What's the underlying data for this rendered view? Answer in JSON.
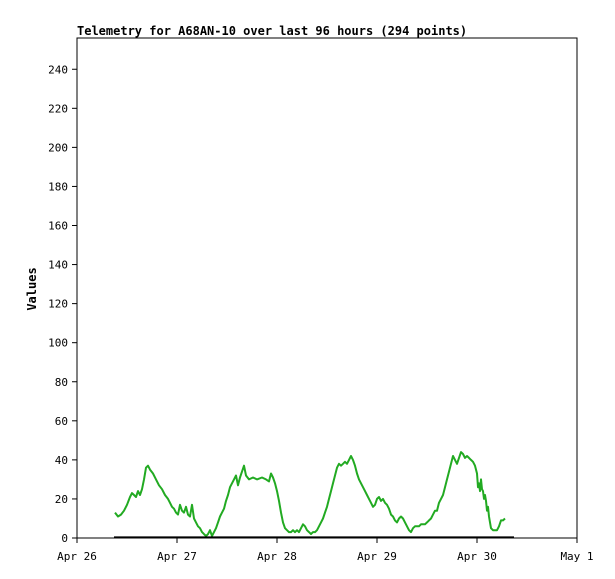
{
  "chart_data": {
    "type": "line",
    "title": "Telemetry for A68AN-10 over last 96 hours (294 points)",
    "xlabel": "",
    "ylabel": "Values",
    "x_tick_labels": [
      "Apr 26",
      "Apr 27",
      "Apr 28",
      "Apr 29",
      "Apr 30",
      "May 1"
    ],
    "x_range_days": [
      0,
      5
    ],
    "y_ticks": [
      0,
      20,
      40,
      60,
      80,
      100,
      120,
      140,
      160,
      180,
      200,
      220,
      240
    ],
    "ylim": [
      0,
      256
    ],
    "grid": false,
    "legend": "none",
    "series": [
      {
        "color": "#22aa22",
        "points": [
          [
            0.38,
            13
          ],
          [
            0.41,
            11
          ],
          [
            0.44,
            12
          ],
          [
            0.47,
            14
          ],
          [
            0.5,
            17
          ],
          [
            0.53,
            21
          ],
          [
            0.55,
            23
          ],
          [
            0.57,
            22
          ],
          [
            0.59,
            21
          ],
          [
            0.61,
            24
          ],
          [
            0.63,
            22
          ],
          [
            0.65,
            25
          ],
          [
            0.67,
            30
          ],
          [
            0.69,
            36
          ],
          [
            0.71,
            37
          ],
          [
            0.73,
            35
          ],
          [
            0.76,
            33
          ],
          [
            0.79,
            30
          ],
          [
            0.82,
            27
          ],
          [
            0.85,
            25
          ],
          [
            0.88,
            22
          ],
          [
            0.91,
            20
          ],
          [
            0.93,
            18
          ],
          [
            0.95,
            16
          ],
          [
            0.97,
            15
          ],
          [
            0.99,
            13
          ],
          [
            1.01,
            12
          ],
          [
            1.03,
            17
          ],
          [
            1.05,
            14
          ],
          [
            1.07,
            13
          ],
          [
            1.09,
            16
          ],
          [
            1.11,
            12
          ],
          [
            1.13,
            11
          ],
          [
            1.15,
            17
          ],
          [
            1.17,
            10
          ],
          [
            1.19,
            8
          ],
          [
            1.21,
            6
          ],
          [
            1.23,
            5
          ],
          [
            1.25,
            3
          ],
          [
            1.27,
            2
          ],
          [
            1.29,
            1
          ],
          [
            1.31,
            2
          ],
          [
            1.33,
            4
          ],
          [
            1.35,
            1
          ],
          [
            1.37,
            3
          ],
          [
            1.39,
            5
          ],
          [
            1.41,
            8
          ],
          [
            1.43,
            11
          ],
          [
            1.45,
            13
          ],
          [
            1.47,
            15
          ],
          [
            1.49,
            19
          ],
          [
            1.51,
            22
          ],
          [
            1.53,
            26
          ],
          [
            1.55,
            28
          ],
          [
            1.57,
            30
          ],
          [
            1.59,
            32
          ],
          [
            1.61,
            27
          ],
          [
            1.63,
            31
          ],
          [
            1.65,
            34
          ],
          [
            1.67,
            37
          ],
          [
            1.69,
            32
          ],
          [
            1.72,
            30
          ],
          [
            1.76,
            31
          ],
          [
            1.8,
            30
          ],
          [
            1.85,
            31
          ],
          [
            1.89,
            30
          ],
          [
            1.92,
            29
          ],
          [
            1.94,
            33
          ],
          [
            1.96,
            31
          ],
          [
            1.98,
            28
          ],
          [
            2.0,
            24
          ],
          [
            2.02,
            19
          ],
          [
            2.04,
            13
          ],
          [
            2.06,
            8
          ],
          [
            2.08,
            5
          ],
          [
            2.1,
            4
          ],
          [
            2.12,
            3
          ],
          [
            2.14,
            3
          ],
          [
            2.16,
            4
          ],
          [
            2.18,
            3
          ],
          [
            2.2,
            4
          ],
          [
            2.22,
            3
          ],
          [
            2.24,
            5
          ],
          [
            2.26,
            7
          ],
          [
            2.28,
            6
          ],
          [
            2.3,
            4
          ],
          [
            2.32,
            3
          ],
          [
            2.34,
            2
          ],
          [
            2.36,
            3
          ],
          [
            2.38,
            3
          ],
          [
            2.4,
            4
          ],
          [
            2.42,
            6
          ],
          [
            2.44,
            8
          ],
          [
            2.46,
            10
          ],
          [
            2.48,
            13
          ],
          [
            2.5,
            16
          ],
          [
            2.52,
            20
          ],
          [
            2.54,
            24
          ],
          [
            2.56,
            28
          ],
          [
            2.58,
            32
          ],
          [
            2.6,
            36
          ],
          [
            2.62,
            38
          ],
          [
            2.64,
            37
          ],
          [
            2.66,
            38
          ],
          [
            2.68,
            39
          ],
          [
            2.7,
            38
          ],
          [
            2.72,
            40
          ],
          [
            2.74,
            42
          ],
          [
            2.76,
            40
          ],
          [
            2.78,
            37
          ],
          [
            2.8,
            33
          ],
          [
            2.82,
            30
          ],
          [
            2.84,
            28
          ],
          [
            2.86,
            26
          ],
          [
            2.88,
            24
          ],
          [
            2.9,
            22
          ],
          [
            2.92,
            20
          ],
          [
            2.94,
            18
          ],
          [
            2.96,
            16
          ],
          [
            2.98,
            17
          ],
          [
            3.0,
            20
          ],
          [
            3.02,
            21
          ],
          [
            3.04,
            19
          ],
          [
            3.06,
            20
          ],
          [
            3.08,
            18
          ],
          [
            3.1,
            17
          ],
          [
            3.12,
            15
          ],
          [
            3.14,
            12
          ],
          [
            3.16,
            11
          ],
          [
            3.18,
            9
          ],
          [
            3.2,
            8
          ],
          [
            3.22,
            10
          ],
          [
            3.24,
            11
          ],
          [
            3.26,
            10
          ],
          [
            3.28,
            8
          ],
          [
            3.3,
            6
          ],
          [
            3.32,
            4
          ],
          [
            3.34,
            3
          ],
          [
            3.36,
            5
          ],
          [
            3.38,
            6
          ],
          [
            3.4,
            6
          ],
          [
            3.42,
            6
          ],
          [
            3.44,
            7
          ],
          [
            3.46,
            7
          ],
          [
            3.48,
            7
          ],
          [
            3.5,
            8
          ],
          [
            3.52,
            9
          ],
          [
            3.54,
            10
          ],
          [
            3.56,
            12
          ],
          [
            3.58,
            14
          ],
          [
            3.6,
            14
          ],
          [
            3.62,
            18
          ],
          [
            3.64,
            20
          ],
          [
            3.66,
            22
          ],
          [
            3.68,
            26
          ],
          [
            3.7,
            30
          ],
          [
            3.72,
            34
          ],
          [
            3.74,
            38
          ],
          [
            3.76,
            42
          ],
          [
            3.78,
            40
          ],
          [
            3.8,
            38
          ],
          [
            3.82,
            41
          ],
          [
            3.84,
            44
          ],
          [
            3.86,
            43
          ],
          [
            3.88,
            41
          ],
          [
            3.9,
            42
          ],
          [
            3.92,
            41
          ],
          [
            3.94,
            40
          ],
          [
            3.96,
            39
          ],
          [
            3.98,
            37
          ],
          [
            4.0,
            33
          ],
          [
            4.01,
            26
          ],
          [
            4.02,
            28
          ],
          [
            4.03,
            24
          ],
          [
            4.04,
            30
          ],
          [
            4.05,
            25
          ],
          [
            4.06,
            24
          ],
          [
            4.07,
            20
          ],
          [
            4.08,
            22
          ],
          [
            4.09,
            19
          ],
          [
            4.1,
            14
          ],
          [
            4.11,
            16
          ],
          [
            4.12,
            11
          ],
          [
            4.13,
            8
          ],
          [
            4.14,
            5
          ],
          [
            4.16,
            4
          ],
          [
            4.18,
            4
          ],
          [
            4.2,
            4
          ],
          [
            4.22,
            6
          ],
          [
            4.24,
            9
          ],
          [
            4.26,
            9
          ],
          [
            4.28,
            10
          ]
        ]
      },
      {
        "color": "#000000",
        "points": [
          [
            0.37,
            0.3
          ],
          [
            4.37,
            0.3
          ]
        ]
      }
    ]
  }
}
